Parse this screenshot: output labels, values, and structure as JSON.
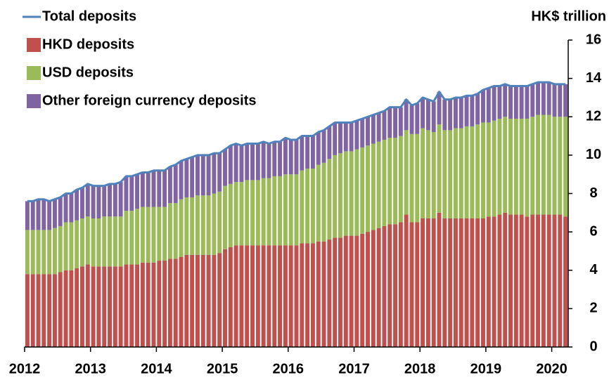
{
  "chart_data": {
    "type": "stacked_bar",
    "y_label": "HK$ trillion",
    "categories": [
      "2012",
      null,
      null,
      null,
      null,
      null,
      null,
      null,
      null,
      null,
      null,
      null,
      "2013",
      null,
      null,
      null,
      null,
      null,
      null,
      null,
      null,
      null,
      null,
      null,
      "2014",
      null,
      null,
      null,
      null,
      null,
      null,
      null,
      null,
      null,
      null,
      null,
      "2015",
      null,
      null,
      null,
      null,
      null,
      null,
      null,
      null,
      null,
      null,
      null,
      "2016",
      null,
      null,
      null,
      null,
      null,
      null,
      null,
      null,
      null,
      null,
      null,
      "2017",
      null,
      null,
      null,
      null,
      null,
      null,
      null,
      null,
      null,
      null,
      null,
      "2018",
      null,
      null,
      null,
      null,
      null,
      null,
      null,
      null,
      null,
      null,
      null,
      "2019",
      null,
      null,
      null,
      null,
      null,
      null,
      null,
      null,
      null,
      null,
      null,
      "2020",
      null,
      null
    ],
    "series": [
      {
        "name": "Total deposits",
        "type": "line",
        "color": "#4f81bd",
        "values": [
          7.6,
          7.6,
          7.7,
          7.7,
          7.6,
          7.7,
          7.8,
          8.0,
          8.0,
          8.2,
          8.3,
          8.5,
          8.4,
          8.4,
          8.4,
          8.5,
          8.5,
          8.6,
          8.9,
          8.9,
          9.0,
          9.1,
          9.1,
          9.2,
          9.2,
          9.2,
          9.4,
          9.5,
          9.7,
          9.8,
          9.9,
          10.0,
          10.0,
          10.0,
          10.1,
          10.1,
          10.3,
          10.5,
          10.6,
          10.5,
          10.6,
          10.6,
          10.6,
          10.7,
          10.6,
          10.7,
          10.7,
          10.9,
          10.8,
          10.8,
          11.0,
          11.0,
          11.0,
          11.2,
          11.3,
          11.5,
          11.7,
          11.7,
          11.7,
          11.7,
          11.8,
          11.9,
          12.0,
          12.1,
          12.2,
          12.3,
          12.5,
          12.5,
          12.5,
          12.9,
          12.6,
          12.7,
          13.0,
          12.9,
          12.8,
          13.3,
          12.9,
          12.9,
          13.0,
          13.0,
          13.1,
          13.1,
          13.2,
          13.4,
          13.5,
          13.6,
          13.6,
          13.7,
          13.6,
          13.6,
          13.6,
          13.6,
          13.7,
          13.8,
          13.8,
          13.8,
          13.7,
          13.7,
          13.7
        ]
      },
      {
        "name": "HKD deposits",
        "type": "bar",
        "color": "#c0504d",
        "values": [
          3.8,
          3.8,
          3.8,
          3.8,
          3.8,
          3.8,
          3.9,
          4.0,
          4.0,
          4.1,
          4.2,
          4.3,
          4.2,
          4.2,
          4.2,
          4.2,
          4.2,
          4.2,
          4.3,
          4.3,
          4.3,
          4.4,
          4.4,
          4.4,
          4.5,
          4.5,
          4.6,
          4.6,
          4.7,
          4.8,
          4.8,
          4.8,
          4.8,
          4.8,
          4.8,
          4.9,
          5.1,
          5.2,
          5.3,
          5.3,
          5.3,
          5.3,
          5.3,
          5.3,
          5.3,
          5.3,
          5.3,
          5.3,
          5.3,
          5.3,
          5.4,
          5.4,
          5.4,
          5.5,
          5.5,
          5.6,
          5.7,
          5.7,
          5.8,
          5.8,
          5.8,
          5.9,
          6.0,
          6.1,
          6.2,
          6.3,
          6.4,
          6.4,
          6.5,
          6.9,
          6.5,
          6.5,
          6.7,
          6.7,
          6.7,
          7.0,
          6.7,
          6.7,
          6.7,
          6.7,
          6.7,
          6.7,
          6.7,
          6.7,
          6.8,
          6.8,
          6.9,
          7.0,
          6.9,
          6.9,
          6.9,
          6.8,
          6.9,
          6.9,
          6.9,
          6.9,
          6.9,
          6.9,
          6.8
        ]
      },
      {
        "name": "USD deposits",
        "type": "bar",
        "color": "#9bbb59",
        "values": [
          2.3,
          2.3,
          2.3,
          2.3,
          2.3,
          2.4,
          2.4,
          2.5,
          2.5,
          2.5,
          2.5,
          2.5,
          2.5,
          2.5,
          2.6,
          2.6,
          2.6,
          2.6,
          2.8,
          2.8,
          2.9,
          2.9,
          2.9,
          2.9,
          2.8,
          2.8,
          2.9,
          2.9,
          3.0,
          3.0,
          3.0,
          3.1,
          3.1,
          3.1,
          3.2,
          3.2,
          3.3,
          3.3,
          3.3,
          3.3,
          3.4,
          3.4,
          3.4,
          3.5,
          3.5,
          3.6,
          3.6,
          3.7,
          3.7,
          3.7,
          3.8,
          3.9,
          3.9,
          4.0,
          4.1,
          4.2,
          4.3,
          4.4,
          4.4,
          4.4,
          4.5,
          4.5,
          4.5,
          4.5,
          4.5,
          4.5,
          4.5,
          4.5,
          4.5,
          4.4,
          4.6,
          4.6,
          4.7,
          4.6,
          4.5,
          4.6,
          4.6,
          4.6,
          4.7,
          4.7,
          4.8,
          4.8,
          4.9,
          5.0,
          4.9,
          5.0,
          5.0,
          5.0,
          5.0,
          5.0,
          5.0,
          5.1,
          5.1,
          5.2,
          5.2,
          5.2,
          5.1,
          5.1,
          5.2
        ]
      },
      {
        "name": "Other foreign currency deposits",
        "type": "bar",
        "color": "#8064a2",
        "values": [
          1.5,
          1.5,
          1.6,
          1.6,
          1.5,
          1.5,
          1.5,
          1.5,
          1.5,
          1.6,
          1.6,
          1.7,
          1.7,
          1.7,
          1.6,
          1.7,
          1.7,
          1.8,
          1.8,
          1.8,
          1.8,
          1.8,
          1.8,
          1.9,
          1.9,
          1.9,
          1.9,
          2.0,
          2.0,
          2.0,
          2.1,
          2.1,
          2.1,
          2.1,
          2.1,
          2.0,
          1.9,
          2.0,
          2.0,
          1.9,
          1.9,
          1.9,
          1.9,
          1.9,
          1.8,
          1.8,
          1.8,
          1.9,
          1.8,
          1.8,
          1.8,
          1.7,
          1.7,
          1.7,
          1.7,
          1.7,
          1.7,
          1.6,
          1.5,
          1.5,
          1.5,
          1.5,
          1.5,
          1.5,
          1.5,
          1.5,
          1.6,
          1.6,
          1.5,
          1.6,
          1.5,
          1.6,
          1.6,
          1.6,
          1.6,
          1.7,
          1.6,
          1.6,
          1.6,
          1.6,
          1.6,
          1.6,
          1.6,
          1.7,
          1.8,
          1.8,
          1.7,
          1.7,
          1.7,
          1.7,
          1.7,
          1.7,
          1.7,
          1.7,
          1.7,
          1.7,
          1.7,
          1.7,
          1.7
        ]
      }
    ],
    "ylim": [
      0,
      16
    ],
    "yticks": [
      0,
      2,
      4,
      6,
      8,
      10,
      12,
      14,
      16
    ],
    "y_axis_side": "right",
    "grid": false
  }
}
